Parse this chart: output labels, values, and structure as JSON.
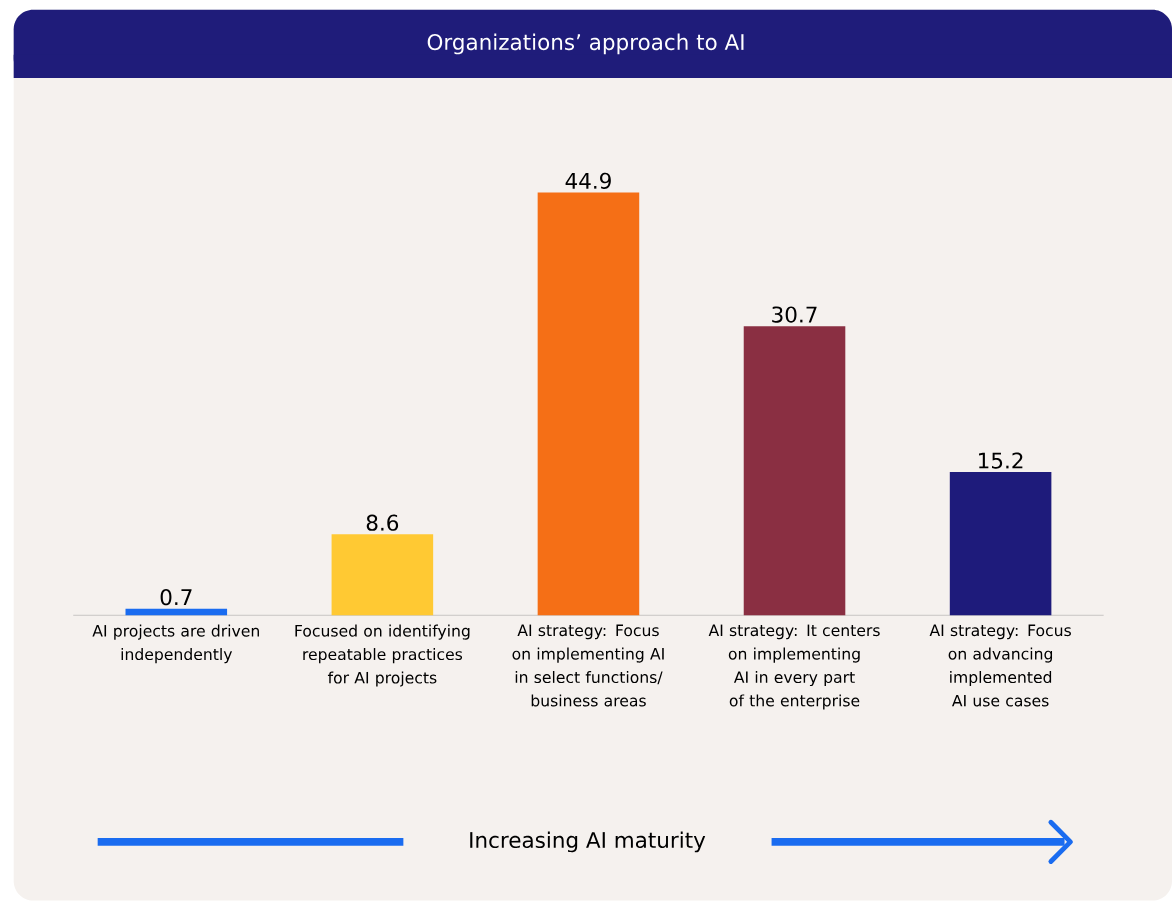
{
  "chart_data": {
    "type": "bar",
    "title": "Organizations’ approach to AI",
    "categories": [
      "AI projects are driven independently",
      "Focused on identifying repeatable practices for AI projects",
      "AI strategy: Focus on implementing AI in select functions/ business areas",
      "AI strategy: It centers on implementing AI in every part of the enterprise",
      "AI strategy: Focus on advancing implemented AI use cases"
    ],
    "values": [
      0.7,
      8.6,
      44.9,
      30.7,
      15.2
    ],
    "colors": [
      "#1a6cf0",
      "#ffc933",
      "#f56f16",
      "#8a2f42",
      "#1e1b7b"
    ],
    "ylim": [
      0,
      44.9
    ],
    "data_labels": true,
    "annotations": [
      "Increasing AI maturity"
    ]
  }
}
